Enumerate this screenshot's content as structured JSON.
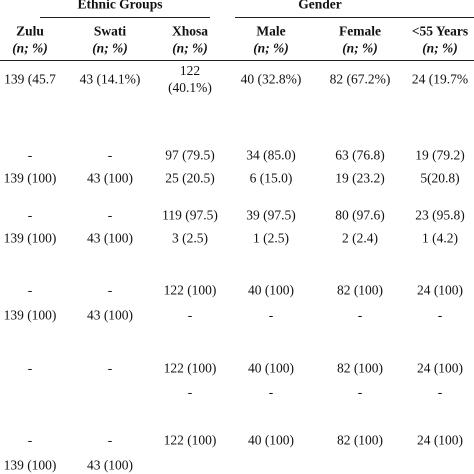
{
  "header": {
    "groups": [
      {
        "label": "Ethnic Groups"
      },
      {
        "label": "Gender"
      }
    ],
    "columns": [
      {
        "name": "Zulu",
        "unit": "(n; %)"
      },
      {
        "name": "Swati",
        "unit": "(n; %)"
      },
      {
        "name": "Xhosa",
        "unit": "(n; %)"
      },
      {
        "name": "Male",
        "unit": "(n; %)"
      },
      {
        "name": "Female",
        "unit": "(n; %)"
      },
      {
        "name": "<55 Years",
        "unit": "(n; %)"
      }
    ]
  },
  "table": {
    "rows": [
      [
        "139 (45.7",
        "43 (14.1%)",
        [
          "122",
          "(40.1%)"
        ],
        "40 (32.8%)",
        "82 (67.2%)",
        "24 (19.7%"
      ],
      [
        "-",
        "-",
        "97 (79.5)",
        "34 (85.0)",
        "63 (76.8)",
        "19 (79.2)"
      ],
      [
        "139 (100)",
        "43 (100)",
        "25 (20.5)",
        "6 (15.0)",
        "19 (23.2)",
        "5(20.8)"
      ],
      [
        "-",
        "-",
        "119 (97.5)",
        "39 (97.5)",
        "80 (97.6)",
        "23 (95.8)"
      ],
      [
        "139 (100)",
        "43 (100)",
        "3 (2.5)",
        "1 (2.5)",
        "2 (2.4)",
        "1 (4.2)"
      ],
      [
        "-",
        "-",
        "122 (100)",
        "40 (100)",
        "82 (100)",
        "24 (100)"
      ],
      [
        "139 (100)",
        "43 (100)",
        "-",
        "-",
        "-",
        "-"
      ],
      [
        "-",
        "-",
        "122 (100)",
        "40 (100)",
        "82 (100)",
        "24 (100)"
      ],
      [
        null,
        null,
        "-",
        "-",
        "-",
        "-"
      ],
      [
        "-",
        "-",
        "122 (100)",
        "40 (100)",
        "82 (100)",
        "24 (100)"
      ],
      [
        "139 (100)",
        "43 (100)",
        null,
        null,
        null,
        null
      ]
    ]
  }
}
